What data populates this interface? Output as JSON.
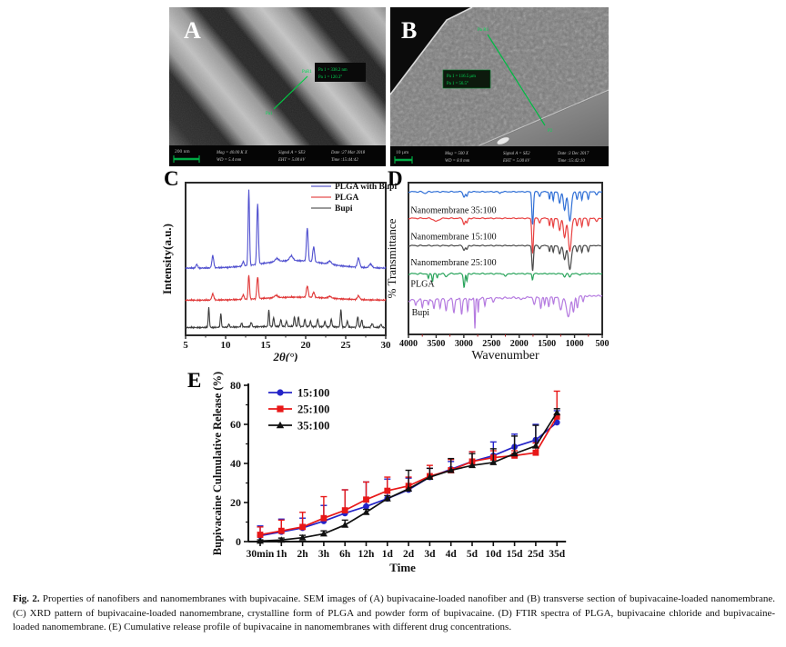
{
  "panelA": {
    "label": "A",
    "scale_label": "200 nm",
    "annotation": {
      "p_start": "Pa1",
      "p_end": "PaR1",
      "line1": "Pa 1 = 338.2 nm",
      "line2": "Pa 1 = 120.3°"
    },
    "meta": {
      "mag": "Mag =  40.00 K X",
      "wd": "WD =  5.4 mm",
      "signal": "Signal A = SE3",
      "eht": "EHT =  5.00 kV",
      "date": "Date :27 Mar 2018",
      "time": "Time :15:44:42"
    }
  },
  "panelB": {
    "label": "B",
    "scale_label": "10 µm",
    "annotation": {
      "p_start": "Pa R1",
      "p_end": "P2",
      "line1": "Pa 1 = 116.5 µm",
      "line2": "Pa 1 = 56.5°"
    },
    "meta": {
      "mag": "Mag =  500 X",
      "wd": "WD =  8.0 mm",
      "signal": "Signal A = SE2",
      "eht": "EHT =  5.00 kV",
      "date": "Date :3 Dec 2017",
      "time": "Time :15:42:10"
    }
  },
  "caption": {
    "bold": "Fig. 2.",
    "text": " Properties of nanofibers and nanomembranes with bupivacaine. SEM images of (A) bupivacaine-loaded nanofiber and (B) transverse section of bupivacaine-loaded nanomembrane. (C) XRD pattern of bupivacaine-loaded nanomembrane, crystalline form of PLGA and powder form of bupivacaine. (D) FTIR spectra of PLGA, bupivacaine chloride and bupivacaine-loaded nanomembrane. (E) Cumulative release profile of bupivacaine in nanomembranes with different drug concentrations."
  },
  "chart_data": [
    {
      "id": "xrd",
      "panel_label": "C",
      "type": "line",
      "xlabel": "2θ(°)",
      "ylabel": "Intensity(a.u.)",
      "xlim": [
        5,
        30
      ],
      "xticks": [
        5,
        10,
        15,
        20,
        25,
        30
      ],
      "grid": false,
      "legend_position": "top-right",
      "series": [
        {
          "name": "PLGA with Bupi",
          "color": "#5050cf",
          "legend_color": "#9a9ade",
          "baseline": 0.44,
          "hump": [
            18.5,
            5.5,
            0.05
          ],
          "peaks": [
            [
              6.4,
              0.025,
              0.15
            ],
            [
              8.4,
              0.08,
              0.16
            ],
            [
              12.2,
              0.03,
              0.15
            ],
            [
              12.9,
              0.5,
              0.12
            ],
            [
              14.0,
              0.4,
              0.14
            ],
            [
              16.4,
              0.02,
              0.3
            ],
            [
              18.2,
              0.03,
              0.3
            ],
            [
              20.2,
              0.22,
              0.15
            ],
            [
              21.0,
              0.1,
              0.16
            ],
            [
              23.0,
              0.02,
              0.3
            ],
            [
              26.6,
              0.06,
              0.2
            ],
            [
              28.1,
              0.025,
              0.25
            ]
          ]
        },
        {
          "name": "PLGA",
          "color": "#e03838",
          "legend_color": "#ef9090",
          "baseline": 0.23,
          "hump": [
            19.0,
            6.0,
            0.02
          ],
          "peaks": [
            [
              8.4,
              0.04,
              0.18
            ],
            [
              12.2,
              0.03,
              0.15
            ],
            [
              12.9,
              0.16,
              0.12
            ],
            [
              14.0,
              0.145,
              0.14
            ],
            [
              16.3,
              0.015,
              0.3
            ],
            [
              20.2,
              0.075,
              0.16
            ],
            [
              21.0,
              0.035,
              0.16
            ],
            [
              23.0,
              0.012,
              0.3
            ],
            [
              26.6,
              0.025,
              0.2
            ]
          ]
        },
        {
          "name": "Bupi",
          "color": "#3c3c3c",
          "legend_color": "#9a9a9a",
          "baseline": 0.05,
          "hump": [
            18.0,
            8.0,
            0.008
          ],
          "peaks": [
            [
              7.9,
              0.13,
              0.1
            ],
            [
              9.4,
              0.09,
              0.1
            ],
            [
              10.4,
              0.02,
              0.12
            ],
            [
              12.0,
              0.025,
              0.12
            ],
            [
              13.2,
              0.03,
              0.12
            ],
            [
              15.4,
              0.11,
              0.1
            ],
            [
              16.0,
              0.06,
              0.11
            ],
            [
              16.9,
              0.045,
              0.12
            ],
            [
              17.6,
              0.035,
              0.12
            ],
            [
              18.6,
              0.065,
              0.11
            ],
            [
              19.1,
              0.065,
              0.11
            ],
            [
              19.9,
              0.05,
              0.11
            ],
            [
              20.6,
              0.035,
              0.12
            ],
            [
              21.5,
              0.05,
              0.12
            ],
            [
              22.4,
              0.035,
              0.12
            ],
            [
              23.2,
              0.05,
              0.12
            ],
            [
              24.4,
              0.115,
              0.11
            ],
            [
              25.2,
              0.04,
              0.12
            ],
            [
              26.5,
              0.07,
              0.12
            ],
            [
              27.0,
              0.05,
              0.12
            ],
            [
              28.3,
              0.025,
              0.15
            ],
            [
              29.4,
              0.02,
              0.15
            ]
          ]
        }
      ]
    },
    {
      "id": "ftir",
      "panel_label": "D",
      "type": "line",
      "xlabel": "Wavenumber",
      "ylabel": "% Transmittance",
      "xlim": [
        4000,
        500
      ],
      "xticks": [
        4000,
        3500,
        3000,
        2500,
        2000,
        1500,
        1000,
        500
      ],
      "grid": false,
      "x_reversed": true,
      "series": [
        {
          "name": "Nanomembrane 35:100",
          "color": "#2f6fd6",
          "baseline": 0.94,
          "tilt": 0,
          "jit": 0.004,
          "label_at": [
            3960,
            0.8
          ],
          "dips": [
            [
              3700,
              0.01,
              40
            ],
            [
              2995,
              0.035,
              25
            ],
            [
              2945,
              0.03,
              20
            ],
            [
              2350,
              0.012,
              20
            ],
            [
              1757,
              0.215,
              20
            ],
            [
              1630,
              0.03,
              22
            ],
            [
              1453,
              0.05,
              15
            ],
            [
              1385,
              0.06,
              15
            ],
            [
              1270,
              0.075,
              25
            ],
            [
              1180,
              0.12,
              30
            ],
            [
              1085,
              0.19,
              38
            ],
            [
              955,
              0.05,
              20
            ],
            [
              868,
              0.055,
              16
            ],
            [
              752,
              0.05,
              18
            ],
            [
              600,
              0.02,
              25
            ]
          ]
        },
        {
          "name": "Nanomembrane 15:100",
          "color": "#e84040",
          "baseline": 0.765,
          "tilt": 0,
          "jit": 0.004,
          "label_at": [
            3960,
            0.625
          ],
          "dips": [
            [
              3500,
              0.02,
              60
            ],
            [
              2995,
              0.04,
              25
            ],
            [
              2945,
              0.03,
              20
            ],
            [
              1757,
              0.23,
              20
            ],
            [
              1630,
              0.03,
              22
            ],
            [
              1453,
              0.05,
              15
            ],
            [
              1385,
              0.06,
              15
            ],
            [
              1270,
              0.08,
              25
            ],
            [
              1180,
              0.125,
              30
            ],
            [
              1085,
              0.215,
              38
            ],
            [
              955,
              0.05,
              20
            ],
            [
              868,
              0.055,
              16
            ],
            [
              752,
              0.05,
              18
            ],
            [
              600,
              0.02,
              25
            ]
          ]
        },
        {
          "name": "Nanomembrane 25:100",
          "color": "#4a4a4a",
          "baseline": 0.585,
          "tilt": 0,
          "jit": 0.004,
          "label_at": [
            3960,
            0.455
          ],
          "dips": [
            [
              2995,
              0.03,
              25
            ],
            [
              2945,
              0.025,
              20
            ],
            [
              1757,
              0.165,
              20
            ],
            [
              1630,
              0.02,
              22
            ],
            [
              1453,
              0.04,
              15
            ],
            [
              1385,
              0.045,
              15
            ],
            [
              1270,
              0.055,
              25
            ],
            [
              1180,
              0.09,
              30
            ],
            [
              1085,
              0.155,
              38
            ],
            [
              955,
              0.04,
              20
            ],
            [
              868,
              0.045,
              16
            ],
            [
              752,
              0.04,
              18
            ]
          ]
        },
        {
          "name": "PLGA",
          "color": "#2aa45c",
          "baseline": 0.4,
          "tilt": 0,
          "jit": 0.005,
          "label_at": [
            3960,
            0.315
          ],
          "dips": [
            [
              3640,
              0.035,
              15
            ],
            [
              3565,
              0.05,
              14
            ],
            [
              3480,
              0.03,
              15
            ],
            [
              3320,
              0.02,
              30
            ],
            [
              2995,
              0.09,
              18
            ],
            [
              2945,
              0.05,
              14
            ],
            [
              2250,
              0.02,
              25
            ],
            [
              1760,
              0.04,
              14
            ],
            [
              1180,
              0.02,
              25
            ],
            [
              1085,
              0.02,
              25
            ],
            [
              900,
              0.01,
              20
            ]
          ]
        },
        {
          "name": "Bupi",
          "color": "#b57be0",
          "baseline": 0.225,
          "tilt": 0.03,
          "jit": 0.009,
          "label_at": [
            3940,
            0.125
          ],
          "dips": [
            [
              3870,
              0.035,
              18
            ],
            [
              3750,
              0.05,
              16
            ],
            [
              3640,
              0.04,
              16
            ],
            [
              3540,
              0.06,
              18
            ],
            [
              3430,
              0.05,
              16
            ],
            [
              3320,
              0.075,
              20
            ],
            [
              3180,
              0.085,
              22
            ],
            [
              3040,
              0.1,
              18
            ],
            [
              2930,
              0.085,
              15
            ],
            [
              2800,
              0.2,
              12
            ],
            [
              2740,
              0.09,
              10
            ],
            [
              2620,
              0.045,
              14
            ],
            [
              2470,
              0.02,
              20
            ],
            [
              1960,
              0.015,
              30
            ],
            [
              1725,
              0.045,
              25
            ],
            [
              1610,
              0.075,
              18
            ],
            [
              1540,
              0.055,
              15
            ],
            [
              1465,
              0.065,
              18
            ],
            [
              1380,
              0.05,
              15
            ],
            [
              1250,
              0.085,
              35
            ],
            [
              1115,
              0.135,
              45
            ],
            [
              1020,
              0.1,
              25
            ],
            [
              950,
              0.075,
              20
            ],
            [
              845,
              0.035,
              18
            ]
          ]
        }
      ]
    },
    {
      "id": "release",
      "panel_label": "E",
      "type": "line-errorbar",
      "xlabel": "Time",
      "ylabel": "Bupivacaine Culmulative Release (%)",
      "ylim": [
        0,
        80
      ],
      "yticks": [
        0,
        20,
        40,
        60,
        80
      ],
      "grid": false,
      "legend_position": "top-left",
      "categories": [
        "30min",
        "1h",
        "2h",
        "3h",
        "6h",
        "12h",
        "1d",
        "2d",
        "3d",
        "4d",
        "5d",
        "10d",
        "15d",
        "25d",
        "35d"
      ],
      "series": [
        {
          "name": "15:100",
          "color": "#2424c8",
          "marker": "circle",
          "values": [
            3,
            5,
            7,
            10.5,
            14.5,
            18,
            22,
            26.5,
            33,
            37,
            41,
            44,
            48.5,
            52,
            61
          ],
          "err_up": [
            5,
            6.5,
            5,
            8,
            12,
            12.5,
            10,
            6,
            4.5,
            4,
            5,
            7,
            6.5,
            8,
            6
          ]
        },
        {
          "name": "25:100",
          "color": "#e81818",
          "marker": "square",
          "values": [
            3.5,
            5.5,
            7.5,
            12,
            16,
            21.5,
            26,
            28.5,
            33.5,
            36.5,
            41,
            43,
            44,
            45.5,
            64
          ],
          "err_up": [
            4,
            5.5,
            7.5,
            11,
            10.5,
            9,
            7,
            4.5,
            5.5,
            5.5,
            5,
            3.5,
            2.5,
            5,
            13
          ]
        },
        {
          "name": "35:100",
          "color": "#101010",
          "marker": "triangle",
          "values": [
            0.3,
            0.8,
            2,
            4,
            8.5,
            15,
            22,
            27,
            33,
            36.5,
            39,
            40.5,
            45,
            49,
            66
          ],
          "err_up": [
            0.6,
            1,
            1.2,
            1.5,
            2.5,
            1.5,
            1.5,
            9.5,
            4.5,
            6,
            6,
            7,
            9,
            10.5,
            2
          ]
        }
      ]
    }
  ]
}
